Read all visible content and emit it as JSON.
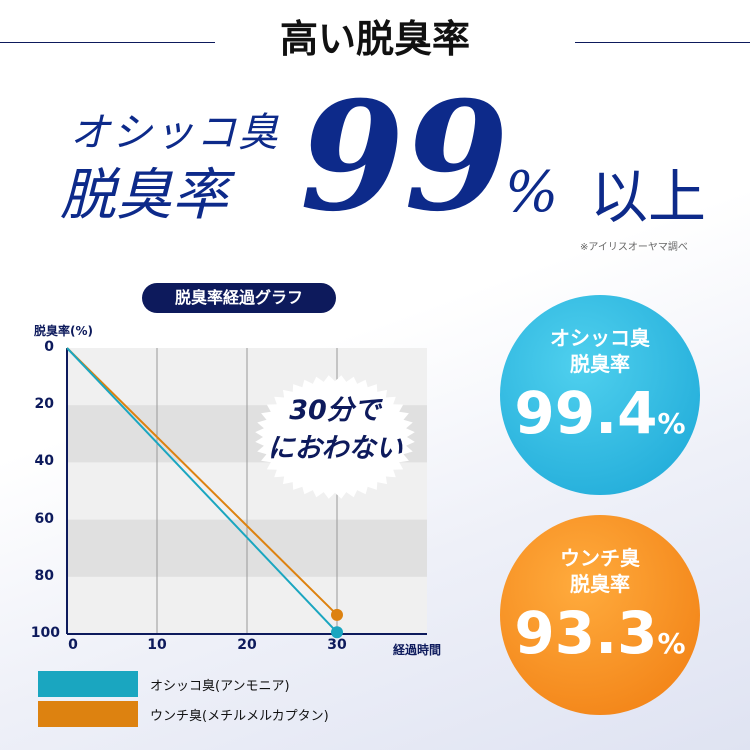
{
  "header": {
    "title": "高い脱臭率",
    "line1": "オシッコ臭",
    "line2": "脱臭率",
    "big": "99",
    "pct": "%",
    "suffix": "以上",
    "note": "※アイリスオーヤマ調べ"
  },
  "callout": {
    "line1": "30分で",
    "line2": "におわない"
  },
  "badges": [
    {
      "label1": "オシッコ臭",
      "label2": "脱臭率",
      "value": "99.4",
      "unit": "%",
      "color": "#1aa6d6"
    },
    {
      "label1": "ウンチ臭",
      "label2": "脱臭率",
      "value": "93.3",
      "unit": "%",
      "color": "#f07c10"
    }
  ],
  "chart_data": {
    "type": "line",
    "title": "脱臭率経過グラフ",
    "xlabel": "経過時間",
    "ylabel": "脱臭率(%)",
    "xlim": [
      0,
      40
    ],
    "ylim": [
      0,
      100
    ],
    "y_inverted": true,
    "xticks": [
      "0",
      "10",
      "20",
      "30"
    ],
    "yticks": [
      "0",
      "20",
      "40",
      "60",
      "80",
      "100"
    ],
    "x": [
      0,
      30
    ],
    "series": [
      {
        "name": "オシッコ臭(アンモニア)",
        "values": [
          0,
          99.4
        ],
        "color": "#1aa6c0"
      },
      {
        "name": "ウンチ臭(メチルメルカプタン)",
        "values": [
          0,
          93.3
        ],
        "color": "#dd8210"
      }
    ]
  }
}
